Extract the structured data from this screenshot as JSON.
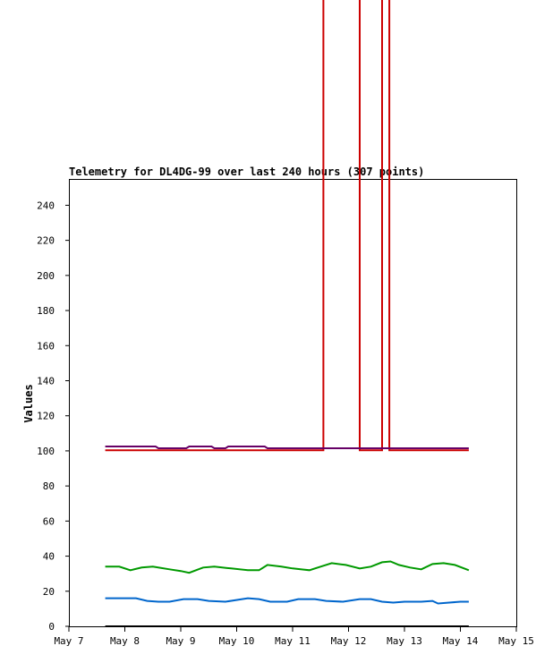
{
  "chart_data": {
    "type": "line",
    "title": "Telemetry for DL4DG-99 over last 240 hours (307 points)",
    "xlabel": "",
    "ylabel": "Values",
    "x_ticks": [
      "May 7",
      "May 8",
      "May 9",
      "May 10",
      "May 11",
      "May 12",
      "May 13",
      "May 14",
      "May 15"
    ],
    "y_ticks": [
      0,
      20,
      40,
      60,
      80,
      100,
      120,
      140,
      160,
      180,
      200,
      220,
      240
    ],
    "xlim_days": [
      7,
      15
    ],
    "ylim": [
      0,
      255
    ],
    "grid": false,
    "series": [
      {
        "color": "#cc0000",
        "points": [
          [
            7.65,
            100.3
          ],
          [
            11.55,
            100.3
          ],
          [
            11.55,
            450
          ],
          [
            12.2,
            450
          ],
          [
            12.2,
            100.3
          ],
          [
            12.6,
            100.3
          ],
          [
            12.6,
            450
          ],
          [
            12.73,
            450
          ],
          [
            12.73,
            100.3
          ],
          [
            14.15,
            100.3
          ]
        ]
      },
      {
        "color": "#660066",
        "points": [
          [
            7.65,
            102.5
          ],
          [
            8.55,
            102.5
          ],
          [
            8.6,
            101.5
          ],
          [
            9.1,
            101.5
          ],
          [
            9.15,
            102.5
          ],
          [
            9.55,
            102.5
          ],
          [
            9.6,
            101.5
          ],
          [
            9.8,
            101.5
          ],
          [
            9.85,
            102.5
          ],
          [
            10.5,
            102.5
          ],
          [
            10.55,
            101.5
          ],
          [
            14.15,
            101.5
          ]
        ]
      },
      {
        "color": "#009900",
        "points": [
          [
            7.65,
            34
          ],
          [
            7.9,
            34
          ],
          [
            8.1,
            32
          ],
          [
            8.3,
            33.5
          ],
          [
            8.5,
            34
          ],
          [
            8.8,
            32.5
          ],
          [
            9.0,
            31.5
          ],
          [
            9.15,
            30.5
          ],
          [
            9.4,
            33.5
          ],
          [
            9.6,
            34
          ],
          [
            9.9,
            33
          ],
          [
            10.2,
            32
          ],
          [
            10.4,
            32
          ],
          [
            10.55,
            35
          ],
          [
            10.8,
            34
          ],
          [
            11.0,
            33
          ],
          [
            11.3,
            32
          ],
          [
            11.5,
            34
          ],
          [
            11.7,
            36
          ],
          [
            11.95,
            35
          ],
          [
            12.2,
            33
          ],
          [
            12.4,
            34
          ],
          [
            12.6,
            36.5
          ],
          [
            12.75,
            37
          ],
          [
            12.9,
            35
          ],
          [
            13.1,
            33.5
          ],
          [
            13.3,
            32.5
          ],
          [
            13.5,
            35.5
          ],
          [
            13.7,
            36
          ],
          [
            13.9,
            35
          ],
          [
            14.15,
            32
          ]
        ]
      },
      {
        "color": "#0066cc",
        "points": [
          [
            7.65,
            16
          ],
          [
            7.8,
            16
          ],
          [
            8.1,
            16
          ],
          [
            8.2,
            16
          ],
          [
            8.4,
            14.5
          ],
          [
            8.6,
            14
          ],
          [
            8.8,
            14
          ],
          [
            9.05,
            15.5
          ],
          [
            9.3,
            15.5
          ],
          [
            9.5,
            14.5
          ],
          [
            9.8,
            14
          ],
          [
            10.2,
            16
          ],
          [
            10.4,
            15.5
          ],
          [
            10.6,
            14
          ],
          [
            10.9,
            14
          ],
          [
            11.1,
            15.5
          ],
          [
            11.4,
            15.5
          ],
          [
            11.6,
            14.5
          ],
          [
            11.9,
            14
          ],
          [
            12.2,
            15.5
          ],
          [
            12.4,
            15.5
          ],
          [
            12.6,
            14
          ],
          [
            12.8,
            13.5
          ],
          [
            13.0,
            14
          ],
          [
            13.3,
            14
          ],
          [
            13.5,
            14.5
          ],
          [
            13.6,
            13
          ],
          [
            13.8,
            13.5
          ],
          [
            14.0,
            14
          ],
          [
            14.15,
            14
          ]
        ]
      },
      {
        "color": "#000000",
        "points": [
          [
            7.65,
            0
          ],
          [
            14.15,
            0
          ]
        ]
      }
    ]
  }
}
